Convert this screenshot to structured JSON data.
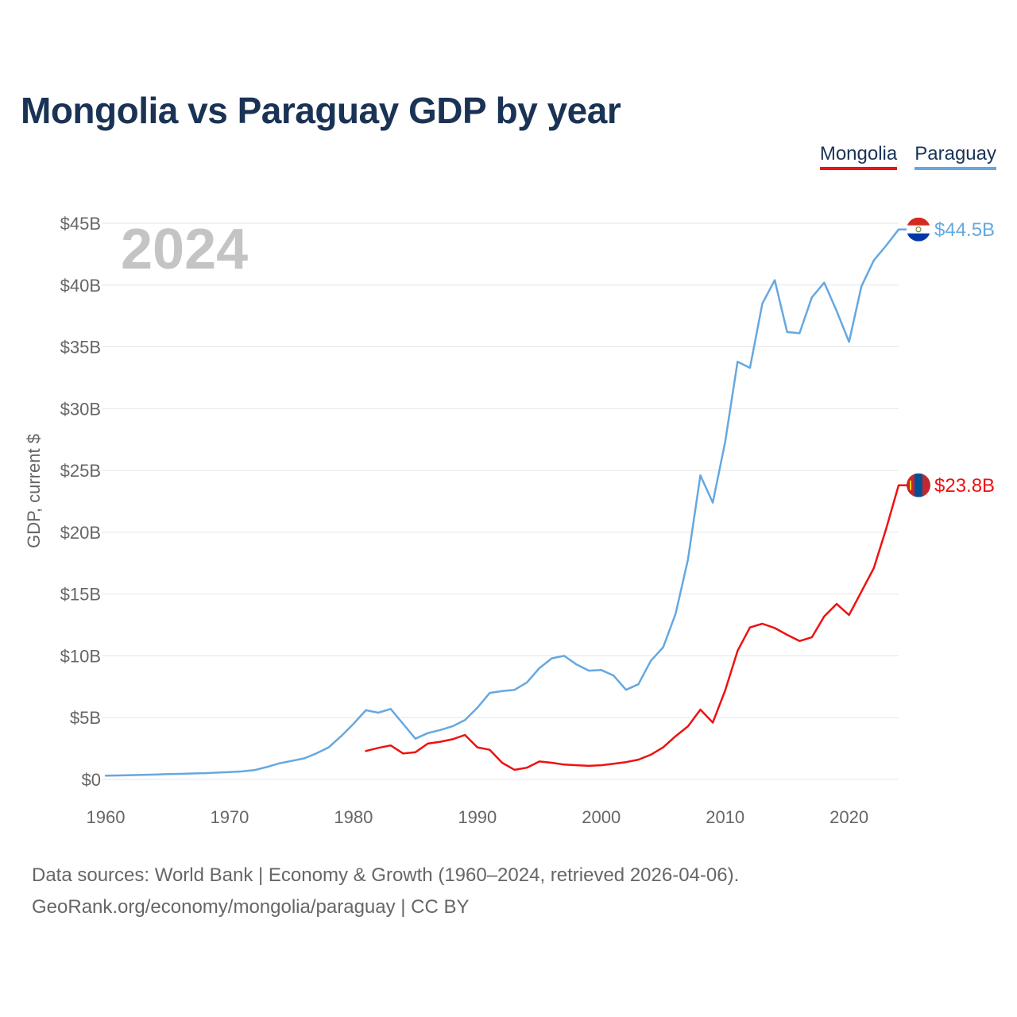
{
  "chart_data": {
    "type": "line",
    "title": "Mongolia vs Paraguay GDP by year",
    "ylabel": "GDP, current $",
    "xlabel": "",
    "year_watermark": "2024",
    "xlim": [
      1960,
      2024
    ],
    "ylim": [
      0,
      45
    ],
    "x_ticks": [
      1960,
      1970,
      1980,
      1990,
      2000,
      2010,
      2020
    ],
    "y_ticks": [
      0,
      5,
      10,
      15,
      20,
      25,
      30,
      35,
      40,
      45
    ],
    "y_tick_labels": [
      "$0",
      "$5B",
      "$10B",
      "$15B",
      "$20B",
      "$25B",
      "$30B",
      "$35B",
      "$40B",
      "$45B"
    ],
    "legend": [
      "Mongolia",
      "Paraguay"
    ],
    "series": [
      {
        "name": "Paraguay",
        "color": "#66a8e0",
        "end_label": "$44.5B",
        "points": [
          [
            1960,
            0.3
          ],
          [
            1961,
            0.32
          ],
          [
            1962,
            0.35
          ],
          [
            1963,
            0.37
          ],
          [
            1964,
            0.39
          ],
          [
            1965,
            0.43
          ],
          [
            1966,
            0.45
          ],
          [
            1967,
            0.48
          ],
          [
            1968,
            0.51
          ],
          [
            1969,
            0.55
          ],
          [
            1970,
            0.59
          ],
          [
            1971,
            0.65
          ],
          [
            1972,
            0.75
          ],
          [
            1973,
            1.0
          ],
          [
            1974,
            1.3
          ],
          [
            1975,
            1.5
          ],
          [
            1976,
            1.7
          ],
          [
            1977,
            2.1
          ],
          [
            1978,
            2.6
          ],
          [
            1979,
            3.5
          ],
          [
            1980,
            4.5
          ],
          [
            1981,
            5.6
          ],
          [
            1982,
            5.4
          ],
          [
            1983,
            5.7
          ],
          [
            1984,
            4.5
          ],
          [
            1985,
            3.3
          ],
          [
            1986,
            3.75
          ],
          [
            1987,
            4.0
          ],
          [
            1988,
            4.3
          ],
          [
            1989,
            4.8
          ],
          [
            1990,
            5.8
          ],
          [
            1991,
            7.0
          ],
          [
            1992,
            7.15
          ],
          [
            1993,
            7.25
          ],
          [
            1994,
            7.85
          ],
          [
            1995,
            9.0
          ],
          [
            1996,
            9.8
          ],
          [
            1997,
            10.0
          ],
          [
            1998,
            9.3
          ],
          [
            1999,
            8.8
          ],
          [
            2000,
            8.85
          ],
          [
            2001,
            8.4
          ],
          [
            2002,
            7.25
          ],
          [
            2003,
            7.7
          ],
          [
            2004,
            9.6
          ],
          [
            2005,
            10.7
          ],
          [
            2006,
            13.4
          ],
          [
            2007,
            17.8
          ],
          [
            2008,
            24.6
          ],
          [
            2009,
            22.4
          ],
          [
            2010,
            27.3
          ],
          [
            2011,
            33.8
          ],
          [
            2012,
            33.3
          ],
          [
            2013,
            38.5
          ],
          [
            2014,
            40.4
          ],
          [
            2015,
            36.2
          ],
          [
            2016,
            36.1
          ],
          [
            2017,
            39.0
          ],
          [
            2018,
            40.2
          ],
          [
            2019,
            37.9
          ],
          [
            2020,
            35.4
          ],
          [
            2021,
            39.9
          ],
          [
            2022,
            42.0
          ],
          [
            2023,
            43.2
          ],
          [
            2024,
            44.5
          ]
        ]
      },
      {
        "name": "Mongolia",
        "color": "#ee1111",
        "end_label": "$23.8B",
        "points": [
          [
            1981,
            2.3
          ],
          [
            1982,
            2.55
          ],
          [
            1983,
            2.75
          ],
          [
            1984,
            2.1
          ],
          [
            1985,
            2.2
          ],
          [
            1986,
            2.9
          ],
          [
            1987,
            3.05
          ],
          [
            1988,
            3.25
          ],
          [
            1989,
            3.6
          ],
          [
            1990,
            2.6
          ],
          [
            1991,
            2.4
          ],
          [
            1992,
            1.35
          ],
          [
            1993,
            0.78
          ],
          [
            1994,
            0.95
          ],
          [
            1995,
            1.45
          ],
          [
            1996,
            1.35
          ],
          [
            1997,
            1.2
          ],
          [
            1998,
            1.15
          ],
          [
            1999,
            1.1
          ],
          [
            2000,
            1.15
          ],
          [
            2001,
            1.27
          ],
          [
            2002,
            1.4
          ],
          [
            2003,
            1.6
          ],
          [
            2004,
            2.0
          ],
          [
            2005,
            2.6
          ],
          [
            2006,
            3.5
          ],
          [
            2007,
            4.3
          ],
          [
            2008,
            5.65
          ],
          [
            2009,
            4.6
          ],
          [
            2010,
            7.2
          ],
          [
            2011,
            10.4
          ],
          [
            2012,
            12.3
          ],
          [
            2013,
            12.6
          ],
          [
            2014,
            12.25
          ],
          [
            2015,
            11.7
          ],
          [
            2016,
            11.2
          ],
          [
            2017,
            11.5
          ],
          [
            2018,
            13.2
          ],
          [
            2019,
            14.2
          ],
          [
            2020,
            13.3
          ],
          [
            2021,
            15.2
          ],
          [
            2022,
            17.1
          ],
          [
            2023,
            20.3
          ],
          [
            2024,
            23.8
          ]
        ]
      }
    ]
  },
  "footer": {
    "line1": "Data sources: World Bank | Economy & Growth (1960–2024, retrieved 2026-04-06).",
    "line2": "GeoRank.org/economy/mongolia/paraguay | CC BY"
  }
}
